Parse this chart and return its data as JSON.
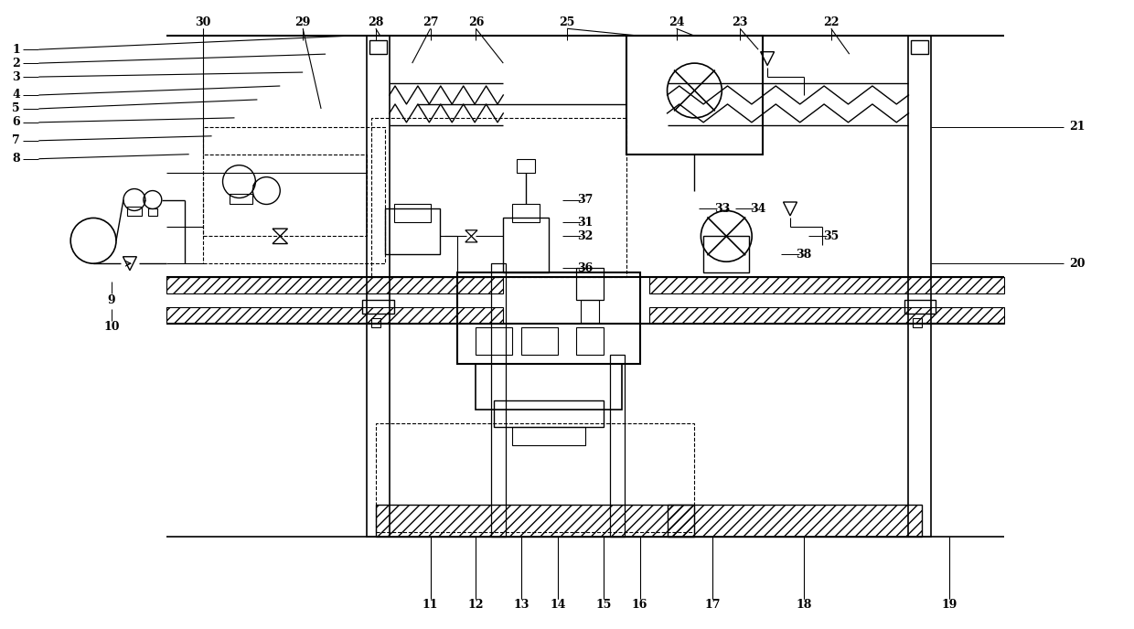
{
  "bg_color": "#ffffff",
  "figsize": [
    12.4,
    6.88
  ],
  "dpi": 100,
  "labels_top_left": [
    [
      "1",
      1.5,
      63.5
    ],
    [
      "2",
      1.5,
      62.0
    ],
    [
      "3",
      1.5,
      60.5
    ],
    [
      "4",
      1.5,
      58.5
    ],
    [
      "5",
      1.5,
      57.0
    ],
    [
      "6",
      1.5,
      55.5
    ],
    [
      "7",
      1.5,
      53.5
    ],
    [
      "8",
      1.5,
      51.5
    ]
  ],
  "labels_top": [
    [
      "30",
      22,
      66.5
    ],
    [
      "29",
      33,
      66.5
    ],
    [
      "28",
      41,
      66.5
    ],
    [
      "27",
      47,
      66.5
    ],
    [
      "26",
      52,
      66.5
    ],
    [
      "25",
      62,
      66.5
    ],
    [
      "24",
      74,
      66.5
    ],
    [
      "23",
      81,
      66.5
    ],
    [
      "22",
      91,
      66.5
    ]
  ],
  "labels_right": [
    [
      "21",
      118,
      55
    ],
    [
      "20",
      118,
      40
    ]
  ],
  "labels_bottom": [
    [
      "9",
      12,
      36
    ],
    [
      "10",
      12,
      33
    ],
    [
      "11",
      47,
      2.5
    ],
    [
      "12",
      52,
      2.5
    ],
    [
      "13",
      57,
      2.5
    ],
    [
      "14",
      61,
      2.5
    ],
    [
      "15",
      66,
      2.5
    ],
    [
      "16",
      70,
      2.5
    ],
    [
      "17",
      78,
      2.5
    ],
    [
      "18",
      88,
      2.5
    ],
    [
      "19",
      104,
      2.5
    ]
  ],
  "labels_inner": [
    [
      "37",
      64,
      47
    ],
    [
      "31",
      64,
      44.5
    ],
    [
      "32",
      64,
      43
    ],
    [
      "36",
      64,
      39.5
    ],
    [
      "33",
      79,
      46
    ],
    [
      "34",
      83,
      46
    ],
    [
      "35",
      91,
      43
    ],
    [
      "38",
      88,
      41
    ]
  ]
}
